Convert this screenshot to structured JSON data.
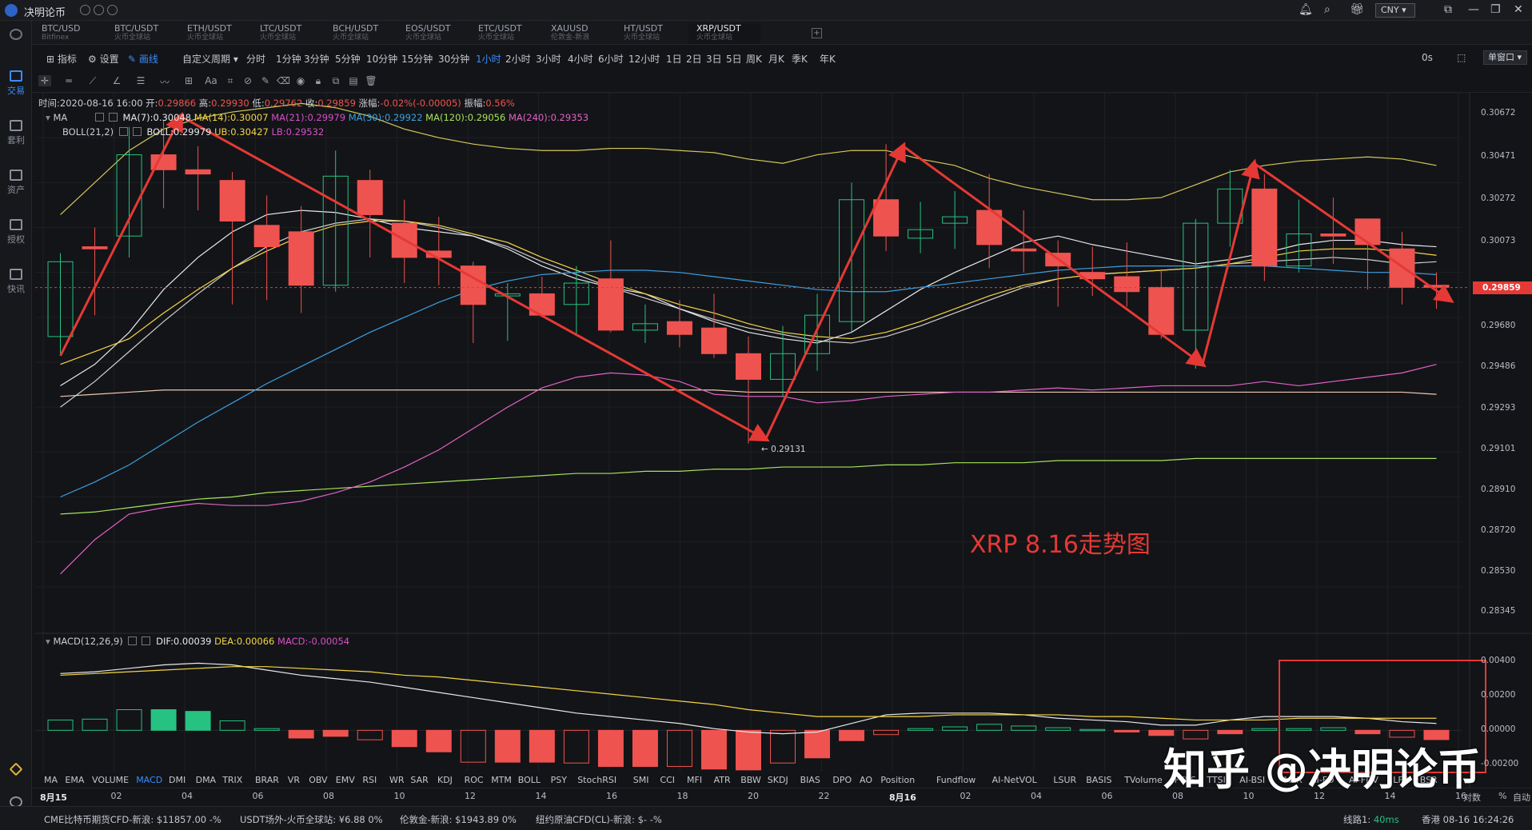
{
  "app": {
    "title": "决明论币",
    "currency": "CNY"
  },
  "tabs": [
    {
      "symbol": "BTC/USD",
      "exchange": "Bitfinex"
    },
    {
      "symbol": "BTC/USDT",
      "exchange": "火币全球站"
    },
    {
      "symbol": "ETH/USDT",
      "exchange": "火币全球站"
    },
    {
      "symbol": "LTC/USDT",
      "exchange": "火币全球站"
    },
    {
      "symbol": "BCH/USDT",
      "exchange": "火币全球站"
    },
    {
      "symbol": "EOS/USDT",
      "exchange": "火币全球站"
    },
    {
      "symbol": "ETC/USDT",
      "exchange": "火币全球站"
    },
    {
      "symbol": "XAUUSD",
      "exchange": "伦敦金-新浪"
    },
    {
      "symbol": "HT/USDT",
      "exchange": "火币全球站"
    },
    {
      "symbol": "XRP/USDT",
      "exchange": "火币全球站"
    }
  ],
  "left_nav": [
    "交易",
    "套利",
    "资产",
    "授权",
    "快讯"
  ],
  "periodbar": {
    "indicator": "指标",
    "settings": "设置",
    "draw": "画线",
    "custom_period": "自定义周期",
    "periods": [
      "分时",
      "1分钟",
      "3分钟",
      "5分钟",
      "10分钟",
      "15分钟",
      "30分钟",
      "1小时",
      "2小时",
      "3小时",
      "4小时",
      "6小时",
      "12小时",
      "1日",
      "2日",
      "3日",
      "5日",
      "周K",
      "月K",
      "季K",
      "年K"
    ],
    "active_period": "1小时",
    "countdown": "0s",
    "window": "单窗口"
  },
  "info": {
    "time_label": "时间:",
    "time": "2020-08-16 16:00",
    "open_label": "开:",
    "open": "0.29866",
    "high_label": "高:",
    "high": "0.29930",
    "low_label": "低:",
    "low": "0.29762",
    "close_label": "收:",
    "close": "0.29859",
    "change_label": "涨幅:",
    "change": "-0.02%(-0.00005)",
    "amp_label": "振幅:",
    "amp": "0.56%"
  },
  "ma_line": {
    "name": "MA",
    "ma7": "MA(7):0.30048",
    "ma14": "MA(14):0.30007",
    "ma21": "MA(21):0.29979",
    "ma30": "MA(30):0.29922",
    "ma120": "MA(120):0.29056",
    "ma240": "MA(240):0.29353"
  },
  "boll_line": {
    "name": "BOLL(21,2)",
    "boll": "BOLL:0.29979",
    "ub": "UB:0.30427",
    "lb": "LB:0.29532"
  },
  "macd_line": {
    "name": "MACD(12,26,9)",
    "dif": "DIF:0.00039",
    "dea": "DEA:0.00066",
    "macd": "MACD:-0.00054"
  },
  "price_ticks": [
    "0.30672",
    "0.30471",
    "0.30272",
    "0.30073",
    "0.29859",
    "0.29680",
    "0.29486",
    "0.29293",
    "0.29101",
    "0.28910",
    "0.28720",
    "0.28530",
    "0.28345"
  ],
  "current_price": "0.29859",
  "macd_ticks": [
    "0.00400",
    "0.00200",
    "0.00000",
    "-0.00200"
  ],
  "low_marker": "← 0.29131",
  "annotation": "XRP 8.16走势图",
  "watermark": "知乎 @决明论币",
  "indicator_tabs": [
    "MA",
    "EMA",
    "VOLUME",
    "MACD",
    "DMI",
    "DMA",
    "TRIX",
    "BRAR",
    "VR",
    "OBV",
    "EMV",
    "RSI",
    "WR",
    "SAR",
    "KDJ",
    "ROC",
    "MTM",
    "BOLL",
    "PSY",
    "StochRSI",
    "SMI",
    "CCI",
    "MFI",
    "ATR",
    "BBW",
    "SKDJ",
    "BIAS",
    "DPO",
    "AO",
    "Position",
    "Fundflow",
    "AI-NetVOL",
    "LSUR",
    "BASIS",
    "TVolume",
    "FTBS",
    "TTSI",
    "AI-BSI",
    "MLR",
    "AI-FD",
    "AI-FDV",
    "LFR",
    "BSR"
  ],
  "active_indicator_tab": "MACD",
  "time_ticks": [
    {
      "label": "8月15",
      "bold": true
    },
    {
      "label": "02"
    },
    {
      "label": "04"
    },
    {
      "label": "06"
    },
    {
      "label": "08"
    },
    {
      "label": "10"
    },
    {
      "label": "12"
    },
    {
      "label": "14"
    },
    {
      "label": "16"
    },
    {
      "label": "18"
    },
    {
      "label": "20"
    },
    {
      "label": "22"
    },
    {
      "label": "8月16",
      "bold": true
    },
    {
      "label": "02"
    },
    {
      "label": "04"
    },
    {
      "label": "06"
    },
    {
      "label": "08"
    },
    {
      "label": "10"
    },
    {
      "label": "12"
    },
    {
      "label": "14"
    },
    {
      "label": "16"
    }
  ],
  "scale_opts": {
    "log": "对数",
    "pct": "%",
    "auto": "自动"
  },
  "status": {
    "cme": "CME比特币期货CFD-新浪: $11857.00 -%",
    "usdt": "USDT场外-火币全球站: ¥6.88 0%",
    "gold": "伦敦金-新浪: $1943.89 0%",
    "oil": "纽约原油CFD(CL)-新浪: $- -%",
    "line_label": "线路1:",
    "latency": "40ms",
    "clock": "香港 08-16 16:24:26"
  },
  "colors": {
    "up": "#26c281",
    "down": "#ef5350",
    "accent": "#3a8dff",
    "annotation": "#e53935"
  },
  "chart_data": {
    "type": "candlestick",
    "interval": "1小时",
    "x_start": "2020-08-15 00:00",
    "ylim": [
      0.2825,
      0.3077
    ],
    "candles": [
      {
        "o": 0.2963,
        "h": 0.3002,
        "l": 0.2955,
        "c": 0.2998
      },
      {
        "o": 0.3005,
        "h": 0.3014,
        "l": 0.2973,
        "c": 0.3004
      },
      {
        "o": 0.301,
        "h": 0.3061,
        "l": 0.3,
        "c": 0.3048
      },
      {
        "o": 0.3048,
        "h": 0.3064,
        "l": 0.3023,
        "c": 0.3041
      },
      {
        "o": 0.3041,
        "h": 0.3052,
        "l": 0.3022,
        "c": 0.3039
      },
      {
        "o": 0.3036,
        "h": 0.304,
        "l": 0.2978,
        "c": 0.3017
      },
      {
        "o": 0.3015,
        "h": 0.3029,
        "l": 0.298,
        "c": 0.3005
      },
      {
        "o": 0.3012,
        "h": 0.3024,
        "l": 0.2974,
        "c": 0.2987
      },
      {
        "o": 0.2987,
        "h": 0.305,
        "l": 0.2984,
        "c": 0.3038
      },
      {
        "o": 0.3036,
        "h": 0.3041,
        "l": 0.3,
        "c": 0.302
      },
      {
        "o": 0.3016,
        "h": 0.3027,
        "l": 0.2988,
        "c": 0.3
      },
      {
        "o": 0.3003,
        "h": 0.3019,
        "l": 0.2987,
        "c": 0.3
      },
      {
        "o": 0.2996,
        "h": 0.2998,
        "l": 0.296,
        "c": 0.2978
      },
      {
        "o": 0.2982,
        "h": 0.2988,
        "l": 0.2961,
        "c": 0.2983
      },
      {
        "o": 0.2983,
        "h": 0.2991,
        "l": 0.2972,
        "c": 0.2973
      },
      {
        "o": 0.2978,
        "h": 0.2996,
        "l": 0.2964,
        "c": 0.2988
      },
      {
        "o": 0.299,
        "h": 0.3008,
        "l": 0.2965,
        "c": 0.2966
      },
      {
        "o": 0.2966,
        "h": 0.2978,
        "l": 0.296,
        "c": 0.2969
      },
      {
        "o": 0.297,
        "h": 0.298,
        "l": 0.2958,
        "c": 0.2964
      },
      {
        "o": 0.2967,
        "h": 0.2983,
        "l": 0.2953,
        "c": 0.2955
      },
      {
        "o": 0.2955,
        "h": 0.2963,
        "l": 0.2913,
        "c": 0.2943
      },
      {
        "o": 0.2943,
        "h": 0.2968,
        "l": 0.2935,
        "c": 0.2955
      },
      {
        "o": 0.2955,
        "h": 0.2983,
        "l": 0.2947,
        "c": 0.2973
      },
      {
        "o": 0.297,
        "h": 0.3035,
        "l": 0.2965,
        "c": 0.3027
      },
      {
        "o": 0.3027,
        "h": 0.3053,
        "l": 0.3003,
        "c": 0.301
      },
      {
        "o": 0.3009,
        "h": 0.3026,
        "l": 0.3002,
        "c": 0.3013
      },
      {
        "o": 0.3016,
        "h": 0.3031,
        "l": 0.3004,
        "c": 0.3019
      },
      {
        "o": 0.3022,
        "h": 0.3039,
        "l": 0.2995,
        "c": 0.3006
      },
      {
        "o": 0.3004,
        "h": 0.3022,
        "l": 0.2993,
        "c": 0.3003
      },
      {
        "o": 0.3002,
        "h": 0.3008,
        "l": 0.2977,
        "c": 0.2996
      },
      {
        "o": 0.2993,
        "h": 0.3005,
        "l": 0.2982,
        "c": 0.299
      },
      {
        "o": 0.2991,
        "h": 0.3007,
        "l": 0.2977,
        "c": 0.2984
      },
      {
        "o": 0.2986,
        "h": 0.2994,
        "l": 0.2962,
        "c": 0.2964
      },
      {
        "o": 0.2966,
        "h": 0.3018,
        "l": 0.2948,
        "c": 0.3016
      },
      {
        "o": 0.3016,
        "h": 0.3041,
        "l": 0.3005,
        "c": 0.3032
      },
      {
        "o": 0.3032,
        "h": 0.3039,
        "l": 0.2989,
        "c": 0.2996
      },
      {
        "o": 0.2996,
        "h": 0.3027,
        "l": 0.2993,
        "c": 0.3011
      },
      {
        "o": 0.3011,
        "h": 0.3028,
        "l": 0.2997,
        "c": 0.301
      },
      {
        "o": 0.3018,
        "h": 0.3018,
        "l": 0.2985,
        "c": 0.3006
      },
      {
        "o": 0.3004,
        "h": 0.3012,
        "l": 0.2978,
        "c": 0.2986
      },
      {
        "o": 0.2987,
        "h": 0.2993,
        "l": 0.2976,
        "c": 0.2986
      }
    ],
    "ma_series": [
      {
        "name": "MA(7)",
        "values": [
          0.294,
          0.295,
          0.2965,
          0.2985,
          0.3,
          0.3012,
          0.302,
          0.3022,
          0.3021,
          0.3018,
          0.3014,
          0.3012,
          0.301,
          0.3004,
          0.2996,
          0.299,
          0.2986,
          0.2983,
          0.2976,
          0.297,
          0.2965,
          0.2962,
          0.296,
          0.2965,
          0.2975,
          0.2985,
          0.2993,
          0.3,
          0.3007,
          0.301,
          0.3006,
          0.3003,
          0.3,
          0.2997,
          0.2999,
          0.3002,
          0.3006,
          0.3008,
          0.3008,
          0.3006,
          0.3005
        ]
      },
      {
        "name": "MA(14)",
        "values": [
          0.295,
          0.2956,
          0.2962,
          0.2974,
          0.2985,
          0.2995,
          0.3003,
          0.301,
          0.3015,
          0.3017,
          0.3017,
          0.3015,
          0.3011,
          0.3007,
          0.3,
          0.2994,
          0.2988,
          0.2983,
          0.2978,
          0.2974,
          0.2969,
          0.2965,
          0.2963,
          0.2962,
          0.2965,
          0.297,
          0.2976,
          0.2982,
          0.2987,
          0.299,
          0.2992,
          0.2993,
          0.2994,
          0.2995,
          0.2997,
          0.3,
          0.3003,
          0.3004,
          0.3004,
          0.3003,
          0.3001
        ]
      },
      {
        "name": "MA(30)",
        "values": [
          0.2888,
          0.2895,
          0.2903,
          0.2913,
          0.2923,
          0.2932,
          0.2941,
          0.2949,
          0.2957,
          0.2965,
          0.2972,
          0.2979,
          0.2985,
          0.2989,
          0.2992,
          0.2993,
          0.2994,
          0.2994,
          0.2993,
          0.2991,
          0.2989,
          0.2987,
          0.2985,
          0.2984,
          0.2984,
          0.2986,
          0.2988,
          0.299,
          0.2992,
          0.2994,
          0.2995,
          0.2996,
          0.2996,
          0.2996,
          0.2996,
          0.2996,
          0.2995,
          0.2994,
          0.2993,
          0.2993,
          0.2992
        ]
      },
      {
        "name": "MA(120)",
        "values": [
          0.288,
          0.2881,
          0.2883,
          0.2885,
          0.2887,
          0.2888,
          0.289,
          0.2891,
          0.2892,
          0.2893,
          0.2894,
          0.2895,
          0.2896,
          0.2897,
          0.2898,
          0.2899,
          0.2899,
          0.29,
          0.29,
          0.2901,
          0.2901,
          0.2902,
          0.2902,
          0.2902,
          0.2903,
          0.2903,
          0.2904,
          0.2904,
          0.2904,
          0.2905,
          0.2905,
          0.2905,
          0.2905,
          0.2906,
          0.2906,
          0.2906,
          0.2906,
          0.2906,
          0.2906,
          0.2906,
          0.2906
        ]
      },
      {
        "name": "MA(240)",
        "values": [
          0.2852,
          0.2868,
          0.288,
          0.2883,
          0.2885,
          0.2884,
          0.2884,
          0.2886,
          0.289,
          0.2895,
          0.2902,
          0.291,
          0.292,
          0.293,
          0.2939,
          0.2944,
          0.2946,
          0.2945,
          0.2942,
          0.2936,
          0.2935,
          0.2935,
          0.2932,
          0.2933,
          0.2935,
          0.2936,
          0.2937,
          0.2937,
          0.2938,
          0.2939,
          0.2938,
          0.2939,
          0.294,
          0.294,
          0.294,
          0.2942,
          0.294,
          0.2942,
          0.2944,
          0.2946,
          0.295
        ]
      }
    ],
    "boll": {
      "mid": [
        0.293,
        0.2942,
        0.2956,
        0.297,
        0.2983,
        0.2995,
        0.3005,
        0.3012,
        0.3016,
        0.3018,
        0.3017,
        0.3014,
        0.301,
        0.3005,
        0.2998,
        0.2992,
        0.2986,
        0.2981,
        0.2976,
        0.2971,
        0.2967,
        0.2964,
        0.2961,
        0.296,
        0.2963,
        0.2968,
        0.2974,
        0.298,
        0.2986,
        0.299,
        0.2992,
        0.2993,
        0.2994,
        0.2995,
        0.2997,
        0.2998,
        0.2999,
        0.3,
        0.2999,
        0.2997,
        0.2998
      ],
      "ub": [
        0.302,
        0.3035,
        0.305,
        0.306,
        0.3065,
        0.3068,
        0.307,
        0.3072,
        0.307,
        0.3066,
        0.306,
        0.3056,
        0.3053,
        0.3051,
        0.305,
        0.305,
        0.3051,
        0.3051,
        0.305,
        0.3049,
        0.3046,
        0.3044,
        0.3048,
        0.305,
        0.305,
        0.3046,
        0.3043,
        0.3037,
        0.3033,
        0.303,
        0.3027,
        0.3027,
        0.3028,
        0.3034,
        0.304,
        0.3043,
        0.3045,
        0.3046,
        0.3047,
        0.3046,
        0.3043
      ],
      "lb": [
        0.2935,
        0.2936,
        0.2937,
        0.2938,
        0.2938,
        0.2938,
        0.2938,
        0.2938,
        0.2938,
        0.2938,
        0.2938,
        0.2938,
        0.2938,
        0.2938,
        0.2938,
        0.2938,
        0.2938,
        0.2938,
        0.2938,
        0.2938,
        0.2937,
        0.2937,
        0.2937,
        0.2937,
        0.2937,
        0.2937,
        0.2937,
        0.2937,
        0.2937,
        0.2937,
        0.2937,
        0.2937,
        0.2937,
        0.2937,
        0.2937,
        0.2937,
        0.2937,
        0.2937,
        0.2937,
        0.2937,
        0.2936
      ]
    },
    "trend_arrows": [
      {
        "from": [
          0,
          0.2954
        ],
        "to": [
          3.5,
          0.3066
        ]
      },
      {
        "from": [
          3.5,
          0.3066
        ],
        "to": [
          20.5,
          0.2915
        ]
      },
      {
        "from": [
          20.5,
          0.2915
        ],
        "to": [
          24.5,
          0.3052
        ]
      },
      {
        "from": [
          24.5,
          0.3052
        ],
        "to": [
          33.2,
          0.295
        ]
      },
      {
        "from": [
          33.2,
          0.295
        ],
        "to": [
          34.7,
          0.3044
        ]
      },
      {
        "from": [
          34.7,
          0.3044
        ],
        "to": [
          40.4,
          0.298
        ]
      }
    ],
    "macd": {
      "ylim": [
        -0.0024,
        0.0048
      ],
      "dif": [
        0.0033,
        0.0034,
        0.0036,
        0.0038,
        0.0039,
        0.0038,
        0.0035,
        0.0032,
        0.003,
        0.0028,
        0.0025,
        0.0022,
        0.0019,
        0.0016,
        0.0013,
        0.001,
        0.0008,
        0.0006,
        0.0004,
        0.0001,
        -0.0001,
        -0.0002,
        -0.0001,
        0.0004,
        0.0009,
        0.001,
        0.001,
        0.001,
        0.0009,
        0.0007,
        0.0006,
        0.0005,
        0.0003,
        0.0003,
        0.0006,
        0.0008,
        0.0008,
        0.0008,
        0.0007,
        0.0005,
        0.0004
      ],
      "dea": [
        0.0032,
        0.0033,
        0.0034,
        0.0035,
        0.0036,
        0.0037,
        0.0037,
        0.0036,
        0.0035,
        0.0034,
        0.0032,
        0.0031,
        0.0029,
        0.0027,
        0.0025,
        0.0023,
        0.0021,
        0.0019,
        0.0017,
        0.0015,
        0.0012,
        0.001,
        0.0008,
        0.0008,
        0.0008,
        0.0008,
        0.0009,
        0.0009,
        0.0009,
        0.0009,
        0.0008,
        0.0008,
        0.0007,
        0.0006,
        0.0006,
        0.0006,
        0.0007,
        0.0007,
        0.0007,
        0.0007,
        0.0007
      ],
      "hist": [
        0.0006,
        0.00065,
        0.0012,
        0.0012,
        0.0011,
        0.00055,
        0.0001,
        -0.00045,
        -0.00035,
        -0.00055,
        -0.00095,
        -0.00125,
        -0.00185,
        -0.00185,
        -0.00185,
        -0.0019,
        -0.0021,
        -0.0021,
        -0.0021,
        -0.00225,
        -0.0023,
        -0.0019,
        -0.0016,
        -0.0006,
        -0.00025,
        0.0001,
        0.0002,
        0.00035,
        0.00025,
        0.00015,
        5e-05,
        -0.0001,
        -0.0003,
        -0.0005,
        -0.0002,
        0.0001,
        0.0001,
        0.00015,
        -0.0002,
        -0.0004,
        -0.00054
      ]
    }
  }
}
